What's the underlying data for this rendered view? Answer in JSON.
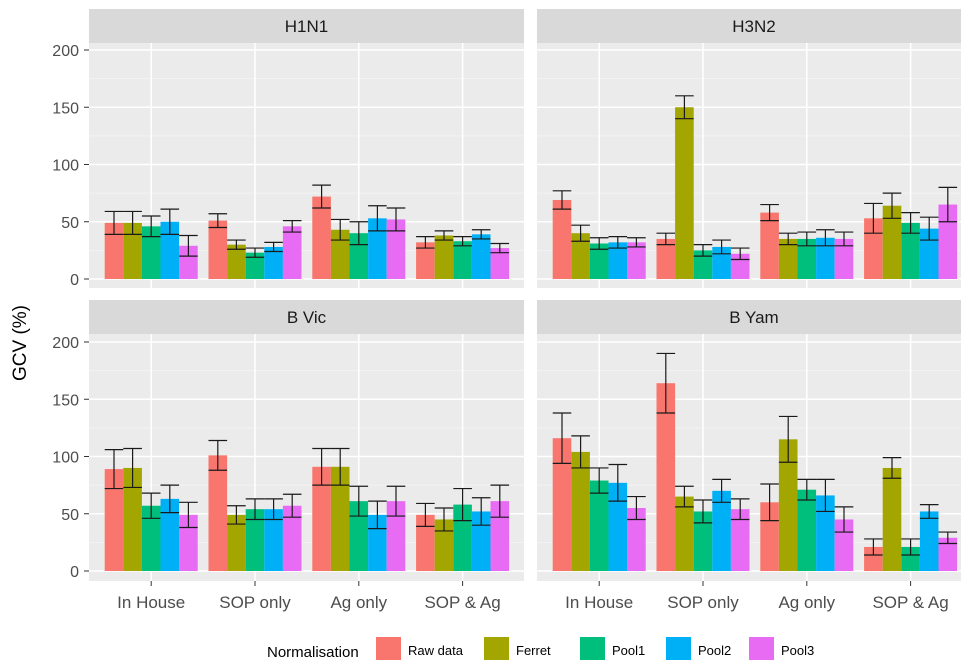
{
  "chart_data": {
    "type": "bar",
    "ylabel": "GCV (%)",
    "xlabel": "",
    "ylim": [
      0,
      200
    ],
    "yticks": [
      "0",
      "50",
      "100",
      "150",
      "200"
    ],
    "categories": [
      "In House",
      "SOP only",
      "Ag only",
      "SOP & Ag"
    ],
    "legend_title": "Normalisation",
    "legend_position": "bottom",
    "grid": true,
    "series_names": [
      "Raw data",
      "Ferret",
      "Pool1",
      "Pool2",
      "Pool3"
    ],
    "series_colors": [
      "#F8766D",
      "#A3A500",
      "#00BF7D",
      "#00B0F6",
      "#E76BF3"
    ],
    "panels": [
      {
        "title": "H1N1",
        "values": [
          [
            49,
            49,
            46,
            50,
            29
          ],
          [
            51,
            30,
            23,
            28,
            46
          ],
          [
            72,
            43,
            40,
            53,
            52
          ],
          [
            32,
            38,
            33,
            39,
            27
          ]
        ],
        "errors": [
          [
            10,
            10,
            9,
            11,
            9
          ],
          [
            6,
            4,
            4,
            4,
            5
          ],
          [
            10,
            9,
            10,
            11,
            10
          ],
          [
            5,
            4,
            4,
            4,
            4
          ]
        ]
      },
      {
        "title": "H3N2",
        "values": [
          [
            69,
            40,
            31,
            32,
            32
          ],
          [
            35,
            150,
            25,
            28,
            22
          ],
          [
            58,
            35,
            35,
            36,
            35
          ],
          [
            53,
            64,
            49,
            44,
            65
          ]
        ],
        "errors": [
          [
            8,
            7,
            5,
            5,
            4
          ],
          [
            5,
            10,
            5,
            6,
            5
          ],
          [
            7,
            5,
            6,
            7,
            6
          ],
          [
            13,
            11,
            9,
            10,
            15
          ]
        ]
      },
      {
        "title": "B Vic",
        "values": [
          [
            89,
            90,
            57,
            63,
            49
          ],
          [
            101,
            49,
            54,
            54,
            57
          ],
          [
            91,
            91,
            61,
            49,
            61
          ],
          [
            49,
            45,
            58,
            52,
            61
          ]
        ],
        "errors": [
          [
            17,
            17,
            11,
            12,
            11
          ],
          [
            13,
            8,
            9,
            9,
            10
          ],
          [
            16,
            16,
            13,
            12,
            13
          ],
          [
            10,
            10,
            14,
            12,
            14
          ]
        ]
      },
      {
        "title": "B Yam",
        "values": [
          [
            116,
            104,
            79,
            77,
            55
          ],
          [
            164,
            65,
            52,
            70,
            54
          ],
          [
            60,
            115,
            71,
            66,
            45
          ],
          [
            21,
            90,
            21,
            52,
            29
          ]
        ],
        "errors": [
          [
            22,
            14,
            11,
            16,
            10
          ],
          [
            26,
            9,
            10,
            10,
            9
          ],
          [
            16,
            20,
            9,
            14,
            11
          ],
          [
            7,
            9,
            7,
            6,
            5
          ]
        ]
      }
    ]
  }
}
